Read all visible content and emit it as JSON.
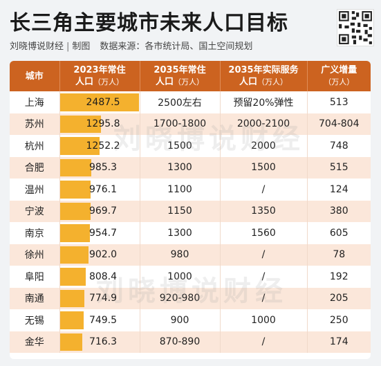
{
  "title": "长三角主要城市未来人口目标",
  "subtitle": {
    "author": "刘晓博说财经",
    "separator": "|",
    "role": "制图",
    "source": "数据来源：各市统计局、国土空间规划"
  },
  "watermark": "刘晓博说财经",
  "header": {
    "city": "城市",
    "col2_line1": "2023年常住",
    "col2_line2": "人口",
    "col2_unit": "（万人）",
    "col3_line1": "2035年常住",
    "col3_line2": "人口",
    "col3_unit": "（万人）",
    "col4_line1": "2035年实际服务",
    "col4_line2": "人口",
    "col4_unit": "（万人）",
    "col5_line1": "广义增量",
    "col5_unit": "（万人）"
  },
  "rows": [
    {
      "city": "上海",
      "pop2023": "2487.5",
      "pop2035": "2500左右",
      "service2035": "预留20%弹性",
      "increment": "513"
    },
    {
      "city": "苏州",
      "pop2023": "1295.8",
      "pop2035": "1700-1800",
      "service2035": "2000-2100",
      "increment": "704-804"
    },
    {
      "city": "杭州",
      "pop2023": "1252.2",
      "pop2035": "1500",
      "service2035": "2000",
      "increment": "748"
    },
    {
      "city": "合肥",
      "pop2023": "985.3",
      "pop2035": "1300",
      "service2035": "1500",
      "increment": "515"
    },
    {
      "city": "温州",
      "pop2023": "976.1",
      "pop2035": "1100",
      "service2035": "/",
      "increment": "124"
    },
    {
      "city": "宁波",
      "pop2023": "969.7",
      "pop2035": "1150",
      "service2035": "1350",
      "increment": "380"
    },
    {
      "city": "南京",
      "pop2023": "954.7",
      "pop2035": "1300",
      "service2035": "1560",
      "increment": "605"
    },
    {
      "city": "徐州",
      "pop2023": "902.0",
      "pop2035": "980",
      "service2035": "/",
      "increment": "78"
    },
    {
      "city": "阜阳",
      "pop2023": "808.4",
      "pop2035": "1000",
      "service2035": "/",
      "increment": "192"
    },
    {
      "city": "南通",
      "pop2023": "774.9",
      "pop2035": "920-980",
      "service2035": "/",
      "increment": "205"
    },
    {
      "city": "无锡",
      "pop2023": "749.5",
      "pop2035": "900",
      "service2035": "1000",
      "increment": "250"
    },
    {
      "city": "金华",
      "pop2023": "716.3",
      "pop2035": "870-890",
      "service2035": "/",
      "increment": "174"
    }
  ],
  "chart_data": {
    "type": "table",
    "categories": [
      "上海",
      "苏州",
      "杭州",
      "合肥",
      "温州",
      "宁波",
      "南京",
      "徐州",
      "阜阳",
      "南通",
      "无锡",
      "金华"
    ],
    "series": [
      {
        "name": "2023年常住人口（万人）",
        "values": [
          2487.5,
          1295.8,
          1252.2,
          985.3,
          976.1,
          969.7,
          954.7,
          902.0,
          808.4,
          774.9,
          749.5,
          716.3
        ]
      }
    ],
    "bar_max": 2487.5
  },
  "colors": {
    "header": "#cc6320",
    "bar": "#f4b12e",
    "row_alt": "#fbe7da"
  }
}
